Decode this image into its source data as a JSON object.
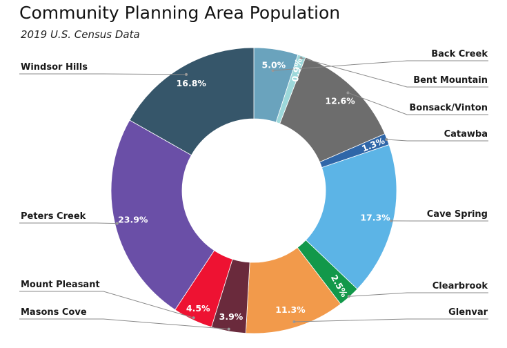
{
  "chart_data": {
    "type": "pie",
    "subtype": "donut",
    "title": "Community Planning Area Population",
    "subtitle": "2019 U.S. Census Data",
    "legend": "callout labels",
    "slices": [
      {
        "label": "Back Creek",
        "value": 5.0,
        "display": "5.0%",
        "color": "#6aa3bd"
      },
      {
        "label": "Bent Mountain",
        "value": 0.9,
        "display": "0.9%",
        "color": "#9dd8da"
      },
      {
        "label": "Bonsack/Vinton",
        "value": 12.6,
        "display": "12.6%",
        "color": "#6d6d6d"
      },
      {
        "label": "Catawba",
        "value": 1.3,
        "display": "1.3%",
        "color": "#2f66a8"
      },
      {
        "label": "Cave Spring",
        "value": 17.3,
        "display": "17.3%",
        "color": "#5cb4e6"
      },
      {
        "label": "Clearbrook",
        "value": 2.5,
        "display": "2.5%",
        "color": "#12984a"
      },
      {
        "label": "Glenvar",
        "value": 11.3,
        "display": "11.3%",
        "color": "#f29a4b"
      },
      {
        "label": "Masons Cove",
        "value": 3.9,
        "display": "3.9%",
        "color": "#6a2a3c"
      },
      {
        "label": "Mount Pleasant",
        "value": 4.5,
        "display": "4.5%",
        "color": "#ee1232"
      },
      {
        "label": "Peters Creek",
        "value": 23.9,
        "display": "23.9%",
        "color": "#6a4fa7"
      },
      {
        "label": "Windsor Hills",
        "value": 16.8,
        "display": "16.8%",
        "color": "#36566a"
      }
    ]
  }
}
